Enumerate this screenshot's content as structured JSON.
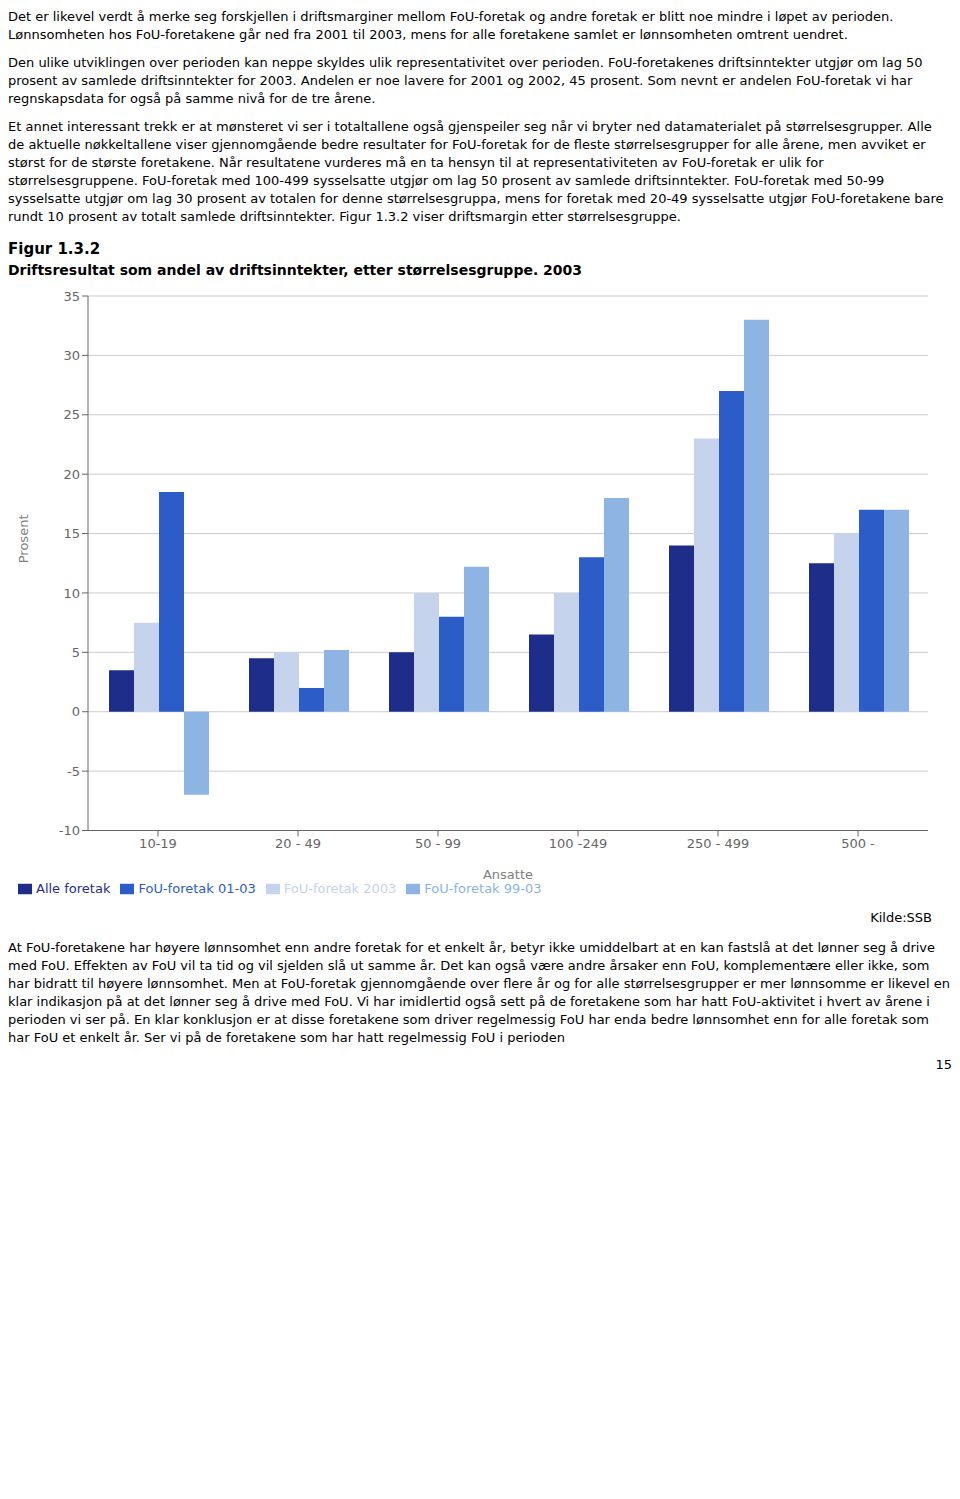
{
  "chart_data": {
    "type": "bar",
    "title": "Figur 1.3.2",
    "subtitle": "Driftsresultat som andel av driftsinntekter, etter størrelsesgruppe. 2003",
    "ylabel": "Prosent",
    "xlabel": "Ansatte",
    "categories": [
      "10-19",
      "20 - 49",
      "50 - 99",
      "100 -249",
      "250 - 499",
      "500 -"
    ],
    "series": [
      {
        "name": "Alle foretak",
        "color": "#1F2D8A",
        "values": [
          3.5,
          4.5,
          5.0,
          6.5,
          14.0,
          12.5
        ]
      },
      {
        "name": "FoU-foretak 2003",
        "color": "#C5D3EC",
        "values": [
          7.5,
          5.0,
          10.0,
          10.0,
          23.0,
          15.0
        ]
      },
      {
        "name": "FoU-foretak 01-03",
        "color": "#2B5CC8",
        "values": [
          18.5,
          2.0,
          8.0,
          13.0,
          27.0,
          17.0
        ]
      },
      {
        "name": "FoU-foretak 99-03",
        "color": "#8EB4E3",
        "values": [
          -7.0,
          5.2,
          12.2,
          18.0,
          33.0,
          17.0
        ]
      }
    ],
    "ylim": [
      -10,
      35
    ],
    "yticks": [
      -10,
      -5,
      0,
      5,
      10,
      15,
      20,
      25,
      30,
      35
    ],
    "grid": true,
    "legend": "bottom",
    "source": "Kilde:SSB",
    "text_above": [
      "Det er likevel verdt å merke seg forskjellen i driftsmarginer mellom FoU-foretak og andre foretak er blitt noe mindre i løpet av perioden. Lønnsomheten hos FoU-foretakene går ned fra 2001 til 2003, mens for alle foretakene samlet er lønnsomheten omtrent uendret.",
      "Den ulike utviklingen over perioden kan neppe skyldes ulik representativitet over perioden. FoU-foretakenes driftsinntekter utgjør om lag 50 prosent av samlede driftsinntekter for 2003. Andelen er noe lavere for 2001 og 2002, 45 prosent. Som nevnt er andelen FoU-foretak vi har regnskapsdata for også på samme nivå for de tre årene.",
      "Et annet interessant trekk er at mønsteret vi ser i totaltallene også gjenspeiler seg når vi bryter ned datamaterialet på størrelsesgrupper. Alle de aktuelle nøkkeltallene viser gjennomgående bedre resultater for FoU-foretak for de fleste størrelsesgrupper for alle årene, men avviket er størst for de største foretakene. Når resultatene vurderes må en ta hensyn til at representativiteten av FoU-foretak er ulik for størrelsesgruppene. FoU-foretak med 100-499 sysselsatte utgjør om lag 50 prosent av samlede driftsinntekter. FoU-foretak med 50-99 sysselsatte utgjør om lag 30 prosent av totalen for denne størrelsesgruppa, mens for foretak med 20-49 sysselsatte utgjør FoU-foretakene bare rundt 10 prosent av totalt samlede driftsinntekter. Figur 1.3.2 viser driftsmargin etter størrelsesgruppe."
    ],
    "text_below": "At FoU-foretakene har høyere lønnsomhet enn andre foretak for et enkelt år, betyr ikke umiddelbart at en kan fastslå at det lønner seg å drive med FoU. Effekten av FoU vil ta tid og vil sjelden slå ut samme år. Det kan også være andre årsaker enn FoU, komplementære eller ikke, som har bidratt til høyere lønnsomhet. Men at FoU-foretak gjennomgående over flere år og for alle størrelsesgrupper er mer lønnsomme er likevel en klar indikasjon på at det lønner seg å drive med FoU. Vi har imidlertid også sett på de foretakene som har hatt FoU-aktivitet i hvert av årene i perioden vi ser på. En klar konklusjon er at disse foretakene som driver regelmessig FoU har enda bedre lønnsomhet enn for alle foretak som har FoU et enkelt år. Ser vi på de foretakene som har hatt regelmessig FoU i perioden",
    "page_number": "15"
  }
}
